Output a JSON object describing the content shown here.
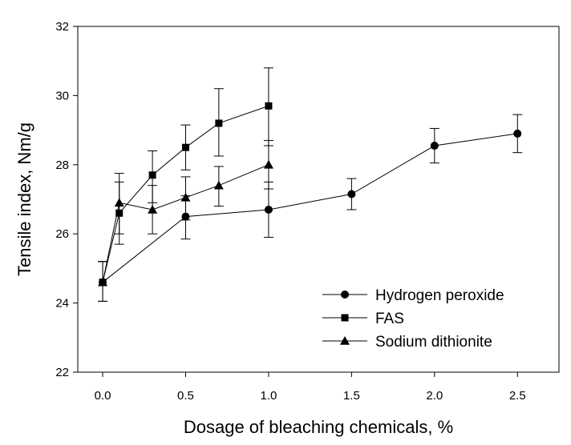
{
  "chart_data": {
    "type": "line",
    "xlabel": "Dosage of bleaching chemicals, %",
    "ylabel": "Tensile index, Nm/g",
    "xlim": [
      -0.15,
      2.75
    ],
    "ylim": [
      22,
      32
    ],
    "x_ticks": [
      "0.0",
      "0.5",
      "1.0",
      "1.5",
      "2.0",
      "2.5"
    ],
    "y_ticks": [
      "22",
      "24",
      "26",
      "28",
      "30",
      "32"
    ],
    "grid": false,
    "legend_position": "bottom-right",
    "series": [
      {
        "name": "Hydrogen peroxide",
        "marker": "circle",
        "x": [
          0,
          0.5,
          1.0,
          1.5,
          2.0,
          2.5
        ],
        "y": [
          24.6,
          26.5,
          26.7,
          27.15,
          28.55,
          28.9
        ],
        "err_low": [
          24.05,
          25.85,
          25.9,
          26.7,
          28.05,
          28.35
        ],
        "err_high": [
          25.2,
          27.1,
          27.5,
          27.6,
          29.05,
          29.45
        ]
      },
      {
        "name": "FAS",
        "marker": "square",
        "x": [
          0,
          0.1,
          0.3,
          0.5,
          0.7,
          1.0
        ],
        "y": [
          24.6,
          26.6,
          27.7,
          28.5,
          29.2,
          29.7
        ],
        "err_low": [
          24.05,
          25.7,
          26.9,
          27.85,
          28.25,
          28.55
        ],
        "err_high": [
          25.2,
          27.5,
          28.4,
          29.15,
          30.2,
          30.8
        ]
      },
      {
        "name": "Sodium dithionite",
        "marker": "triangle",
        "x": [
          0,
          0.1,
          0.3,
          0.5,
          0.7,
          1.0
        ],
        "y": [
          24.6,
          26.9,
          26.7,
          27.05,
          27.4,
          28.0
        ],
        "err_low": [
          24.05,
          26.0,
          26.0,
          26.4,
          26.8,
          27.3
        ],
        "err_high": [
          25.2,
          27.75,
          27.4,
          27.65,
          27.95,
          28.7
        ]
      }
    ]
  }
}
